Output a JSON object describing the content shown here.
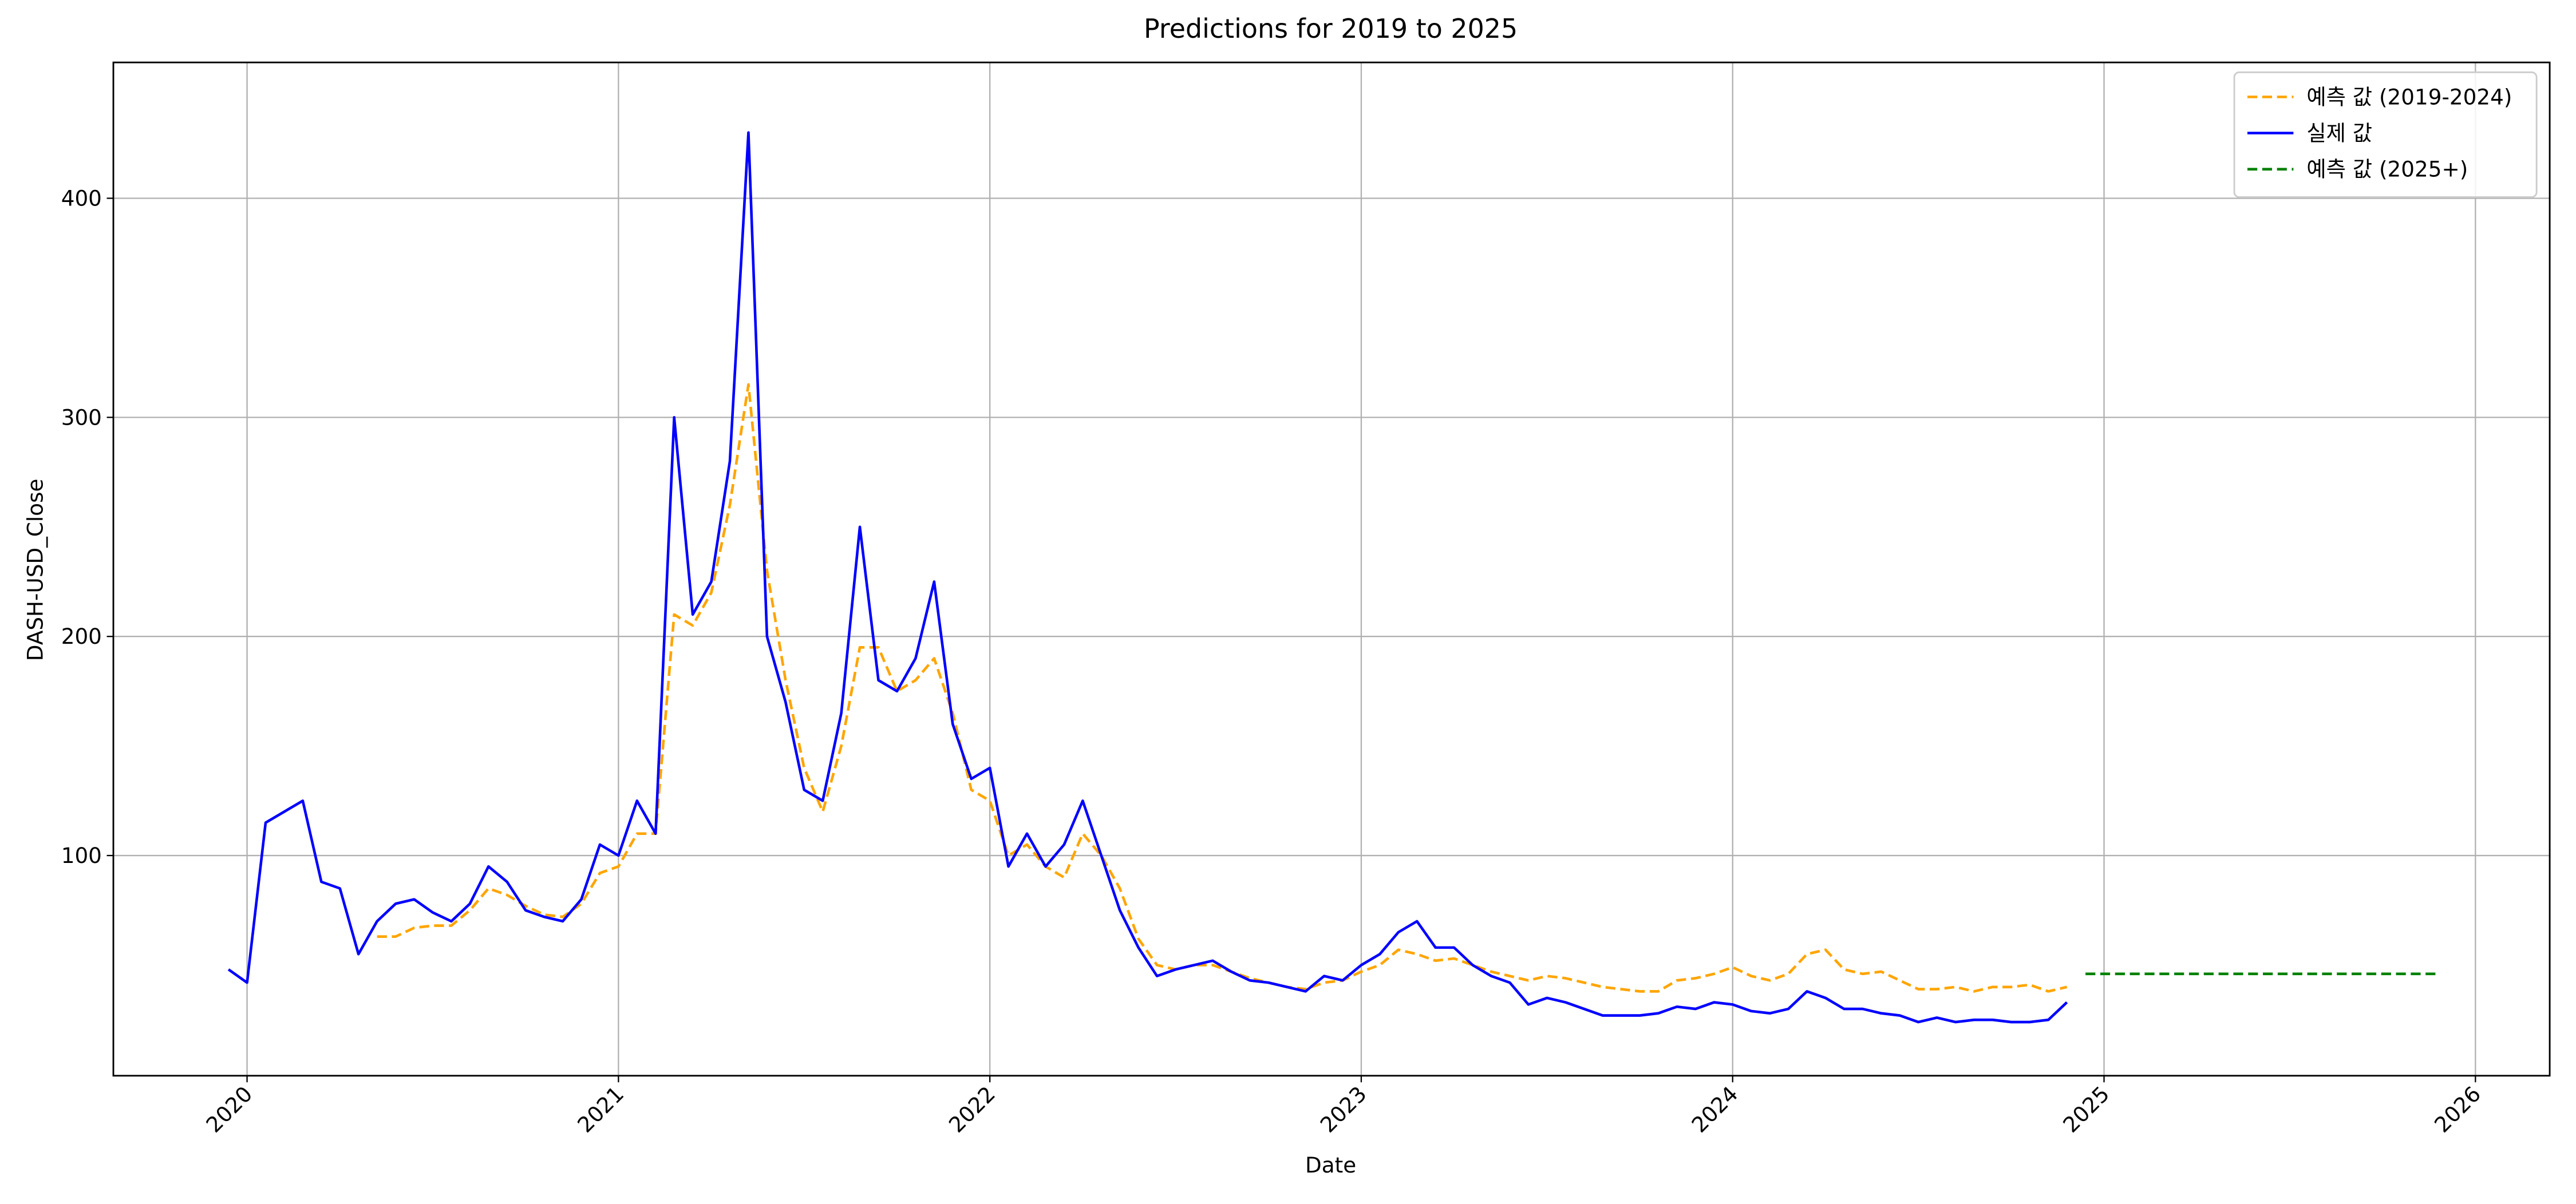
{
  "chart_data": {
    "type": "line",
    "title": "Predictions for 2019 to 2025",
    "x_label": "Date",
    "y_label": "DASH-USD_Close",
    "x": [
      2019.95,
      2020,
      2020.05,
      2020.1,
      2020.15,
      2020.2,
      2020.25,
      2020.3,
      2020.35,
      2020.4,
      2020.45,
      2020.5,
      2020.55,
      2020.6,
      2020.65,
      2020.7,
      2020.75,
      2020.8,
      2020.85,
      2020.9,
      2020.95,
      2021,
      2021.05,
      2021.1,
      2021.15,
      2021.2,
      2021.25,
      2021.3,
      2021.35,
      2021.4,
      2021.45,
      2021.5,
      2021.55,
      2021.6,
      2021.65,
      2021.7,
      2021.75,
      2021.8,
      2021.85,
      2021.9,
      2021.95,
      2022,
      2022.05,
      2022.1,
      2022.15,
      2022.2,
      2022.25,
      2022.3,
      2022.35,
      2022.4,
      2022.45,
      2022.5,
      2022.55,
      2022.6,
      2022.65,
      2022.7,
      2022.75,
      2022.8,
      2022.85,
      2022.9,
      2022.95,
      2023,
      2023.05,
      2023.1,
      2023.15,
      2023.2,
      2023.25,
      2023.3,
      2023.35,
      2023.4,
      2023.45,
      2023.5,
      2023.55,
      2023.6,
      2023.65,
      2023.7,
      2023.75,
      2023.8,
      2023.85,
      2023.9,
      2023.95,
      2024,
      2024.05,
      2024.1,
      2024.15,
      2024.2,
      2024.25,
      2024.3,
      2024.35,
      2024.4,
      2024.45,
      2024.5,
      2024.55,
      2024.6,
      2024.65,
      2024.7,
      2024.75,
      2024.8,
      2024.85,
      2024.9,
      2024.95,
      2025,
      2025.05,
      2025.1,
      2025.15,
      2025.2,
      2025.25,
      2025.3,
      2025.35,
      2025.4,
      2025.45,
      2025.5,
      2025.55,
      2025.6,
      2025.65,
      2025.7,
      2025.75,
      2025.8,
      2025.85,
      2025.9
    ],
    "series": [
      {
        "name": "예측 값 (2019-2024)",
        "color": "#ffa500",
        "linestyle": "dashed",
        "values": [
          null,
          null,
          null,
          null,
          null,
          null,
          null,
          null,
          63,
          63,
          67,
          68,
          68,
          75,
          85,
          82,
          77,
          73,
          72,
          78,
          92,
          95,
          110,
          110,
          210,
          205,
          220,
          260,
          315,
          230,
          180,
          140,
          120,
          150,
          195,
          195,
          175,
          180,
          190,
          165,
          130,
          125,
          100,
          105,
          95,
          90,
          110,
          100,
          85,
          62,
          50,
          48,
          50,
          50,
          47,
          44,
          42,
          40,
          39,
          42,
          43,
          47,
          50,
          57,
          55,
          52,
          53,
          50,
          47,
          45,
          43,
          45,
          44,
          42,
          40,
          39,
          38,
          38,
          43,
          44,
          46,
          49,
          45,
          43,
          46,
          55,
          57,
          48,
          46,
          47,
          43,
          39,
          39,
          40,
          38,
          40,
          40,
          41,
          38,
          40,
          null,
          null,
          null,
          null,
          null,
          null,
          null,
          null,
          null,
          null,
          null,
          null,
          null,
          null,
          null,
          null,
          null,
          null,
          null,
          null
        ]
      },
      {
        "name": "실제 값",
        "color": "#0000ff",
        "linestyle": "solid",
        "values": [
          48,
          42,
          115,
          120,
          125,
          88,
          85,
          55,
          70,
          78,
          80,
          74,
          70,
          78,
          95,
          88,
          75,
          72,
          70,
          80,
          105,
          100,
          125,
          110,
          300,
          210,
          225,
          280,
          430,
          200,
          170,
          130,
          125,
          165,
          250,
          180,
          175,
          190,
          225,
          160,
          135,
          140,
          95,
          110,
          95,
          105,
          125,
          100,
          75,
          58,
          45,
          48,
          50,
          52,
          47,
          43,
          42,
          40,
          38,
          45,
          43,
          50,
          55,
          65,
          70,
          58,
          58,
          50,
          45,
          42,
          32,
          35,
          33,
          30,
          27,
          27,
          27,
          28,
          31,
          30,
          33,
          32,
          29,
          28,
          30,
          38,
          35,
          30,
          30,
          28,
          27,
          24,
          26,
          24,
          25,
          25,
          24,
          24,
          25,
          33,
          null,
          null,
          null,
          null,
          null,
          null,
          null,
          null,
          null,
          null,
          null,
          null,
          null,
          null,
          null,
          null,
          null,
          null,
          null,
          null
        ]
      },
      {
        "name": "예측 값 (2025+)",
        "color": "#008000",
        "linestyle": "dashed",
        "values": [
          null,
          null,
          null,
          null,
          null,
          null,
          null,
          null,
          null,
          null,
          null,
          null,
          null,
          null,
          null,
          null,
          null,
          null,
          null,
          null,
          null,
          null,
          null,
          null,
          null,
          null,
          null,
          null,
          null,
          null,
          null,
          null,
          null,
          null,
          null,
          null,
          null,
          null,
          null,
          null,
          null,
          null,
          null,
          null,
          null,
          null,
          null,
          null,
          null,
          null,
          null,
          null,
          null,
          null,
          null,
          null,
          null,
          null,
          null,
          null,
          null,
          null,
          null,
          null,
          null,
          null,
          null,
          null,
          null,
          null,
          null,
          null,
          null,
          null,
          null,
          null,
          null,
          null,
          null,
          null,
          null,
          null,
          null,
          null,
          null,
          null,
          null,
          null,
          null,
          null,
          null,
          null,
          null,
          null,
          null,
          null,
          null,
          null,
          null,
          null,
          46,
          46,
          46,
          46,
          46,
          46,
          46,
          46,
          46,
          46,
          46,
          46,
          46,
          46,
          46,
          46,
          46,
          46,
          46,
          46
        ]
      }
    ],
    "xlim": [
      2019.64,
      2026.2
    ],
    "xticks": [
      2020,
      2021,
      2022,
      2023,
      2024,
      2025,
      2026
    ],
    "ylim": [
      -0.5,
      462
    ],
    "yticks": [
      100,
      200,
      300,
      400
    ],
    "grid": true,
    "legend": "upper right"
  }
}
